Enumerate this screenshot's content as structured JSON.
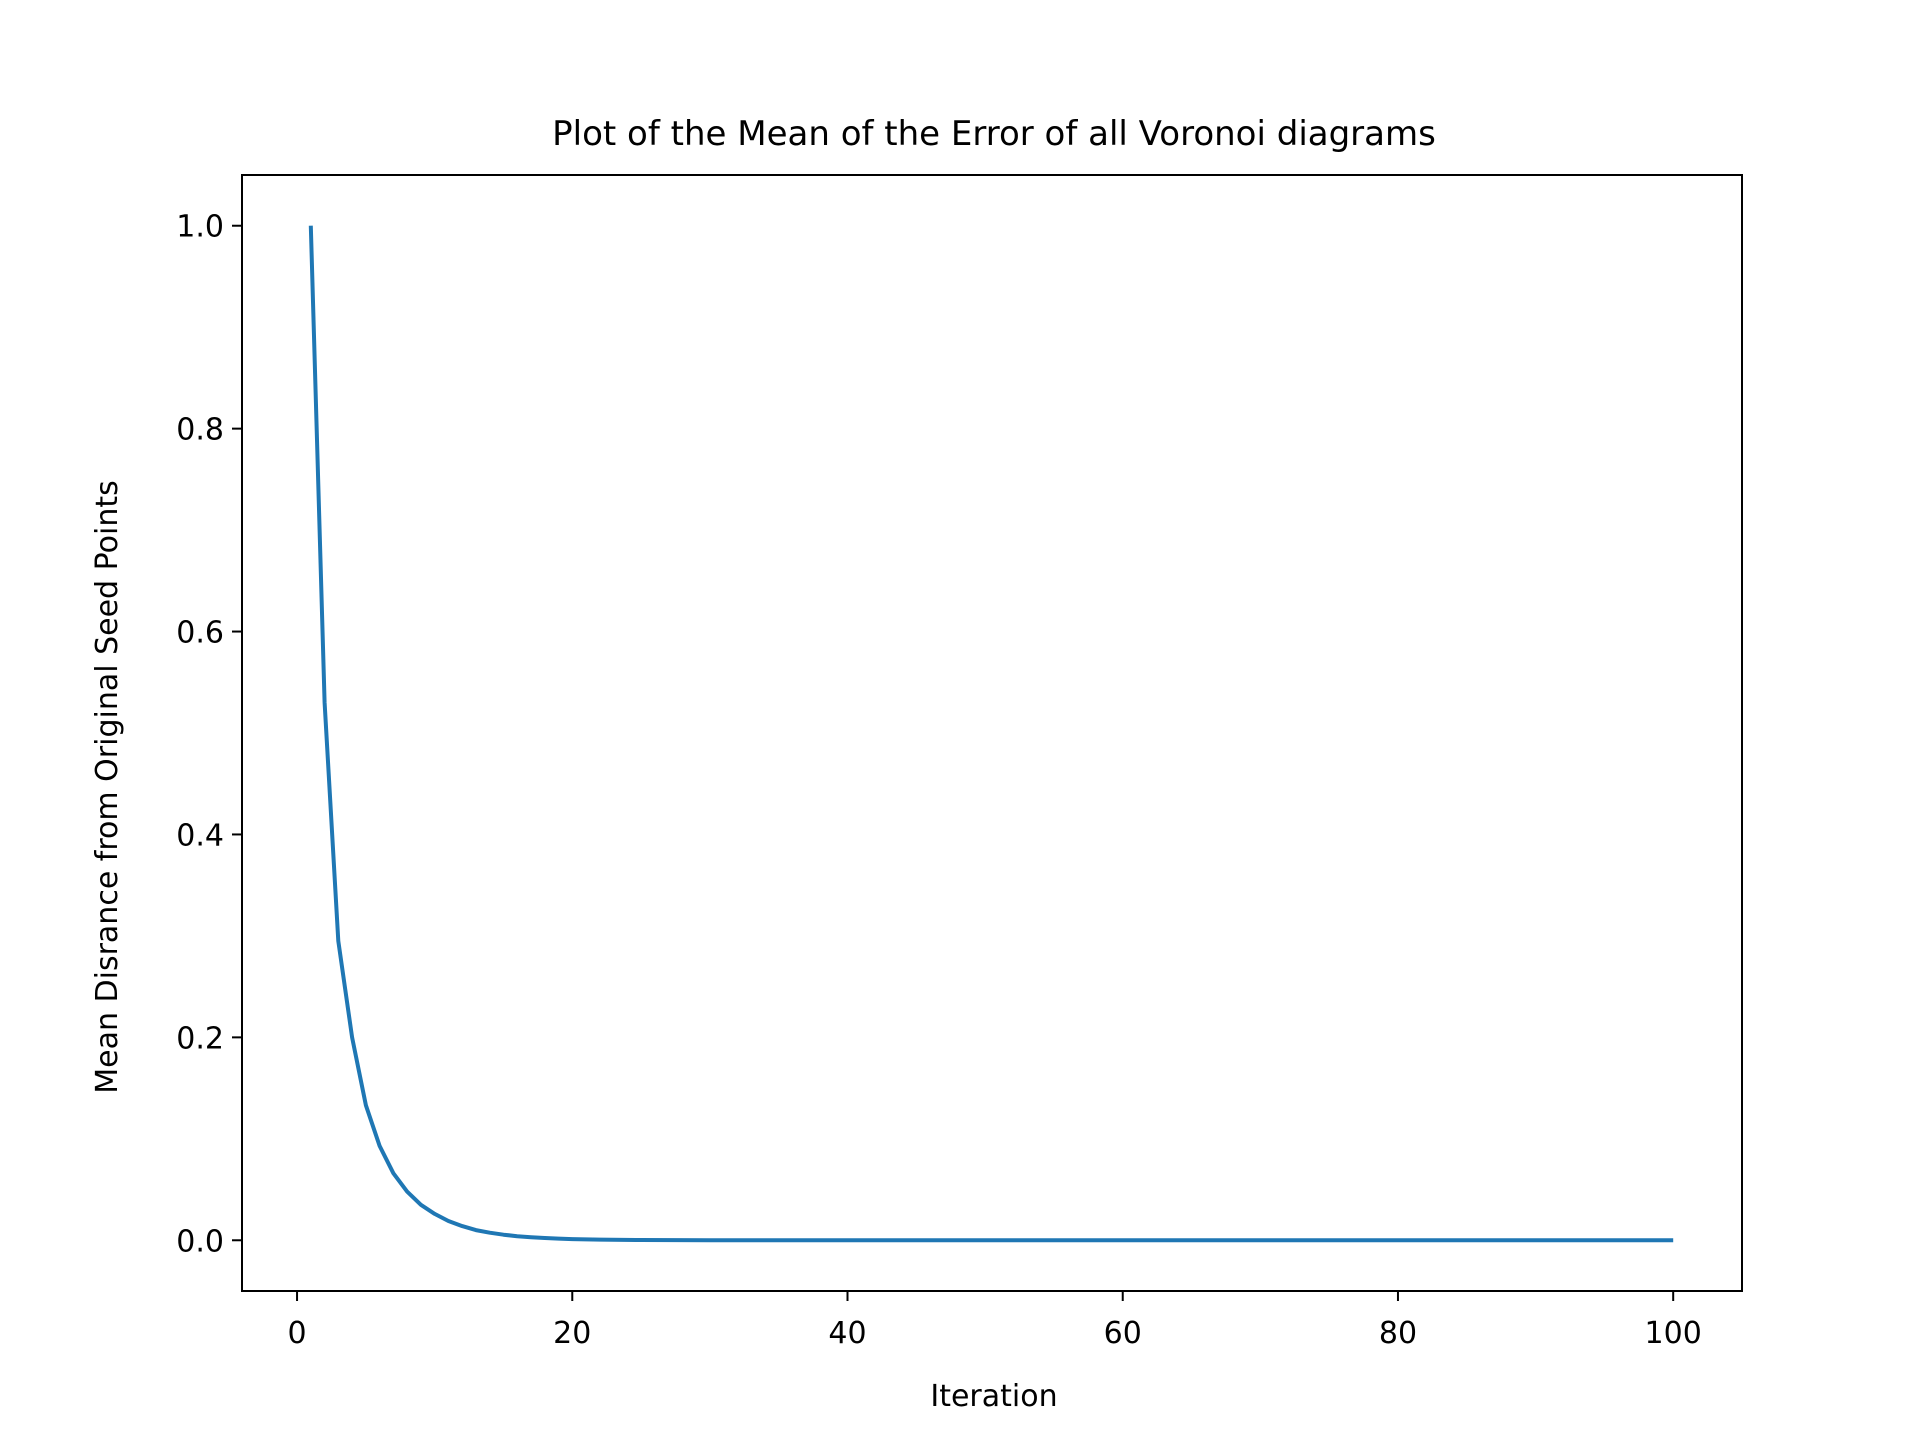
{
  "chart_data": {
    "type": "line",
    "title": "Plot of the Mean of the Error of all Voronoi diagrams",
    "xlabel": "Iteration",
    "ylabel": "Mean Disrance from Original Seed Points",
    "xlim": [
      -4,
      105
    ],
    "ylim": [
      -0.05,
      1.05
    ],
    "xticks": [
      0,
      20,
      40,
      60,
      80,
      100
    ],
    "xtick_labels": [
      "0",
      "20",
      "40",
      "60",
      "80",
      "100"
    ],
    "yticks": [
      0.0,
      0.2,
      0.4,
      0.6,
      0.8,
      1.0
    ],
    "ytick_labels": [
      "0.0",
      "0.2",
      "0.4",
      "0.6",
      "0.8",
      "1.0"
    ],
    "grid": false,
    "legend": "none",
    "series": [
      {
        "color": "#1f77b4",
        "x": [
          1,
          2,
          3,
          4,
          5,
          6,
          7,
          8,
          9,
          10,
          11,
          12,
          13,
          14,
          15,
          16,
          17,
          18,
          19,
          20,
          22,
          25,
          30,
          35,
          40,
          50,
          60,
          70,
          80,
          90,
          100
        ],
        "y": [
          1.0,
          0.53,
          0.295,
          0.2,
          0.133,
          0.093,
          0.066,
          0.048,
          0.035,
          0.026,
          0.019,
          0.014,
          0.01,
          0.0075,
          0.0055,
          0.004,
          0.003,
          0.0022,
          0.0016,
          0.0012,
          0.0007,
          0.0003,
          0.0001,
          4e-05,
          1e-05,
          0.0,
          0.0,
          0.0,
          0.0,
          0.0,
          0.0
        ]
      }
    ]
  }
}
